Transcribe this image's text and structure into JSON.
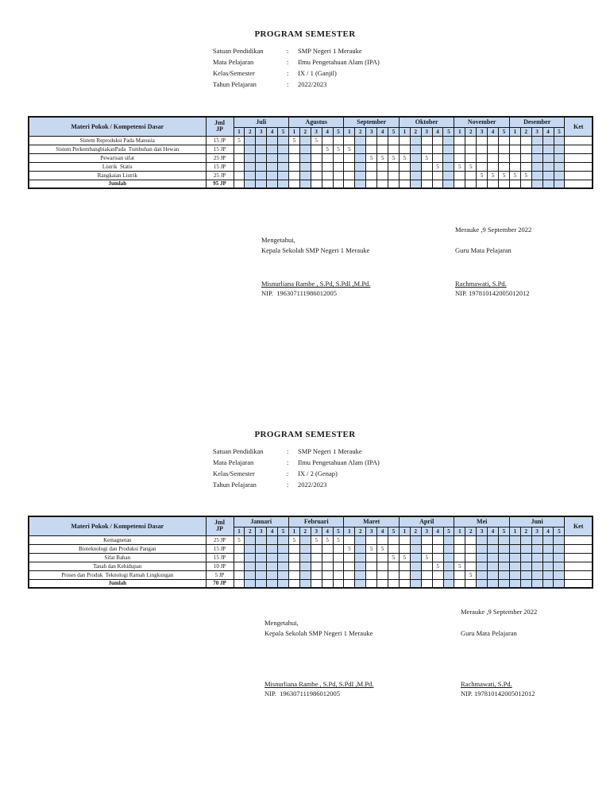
{
  "colors": {
    "header_fill": "#c6d9f1",
    "shaded_week_fill": "#c6d9f1",
    "border": "#151515",
    "page_bg": "#ffffff"
  },
  "sections": [
    {
      "title": "PROGRAM SEMESTER",
      "meta": [
        {
          "label": "Satuan Pendidikan",
          "sep": ":",
          "value": "SMP Negeri 1 Merauke"
        },
        {
          "label": "Mata Pelajaran",
          "sep": ":",
          "value": "Ilmu Pengetahuan Alam (IPA)"
        },
        {
          "label": "Kelas/Semester",
          "sep": ":",
          "value": "IX / 1 (Ganjil)"
        },
        {
          "label": "Tahun Pelajaran",
          "sep": ":",
          "value": "2022/2023"
        }
      ],
      "table": {
        "materi_header": "Materi Pokok / Kompetensi Dasar",
        "jml_header_line1": "Jml",
        "jml_header_line2": "JP",
        "ket_header": "Ket",
        "months": [
          "Juli",
          "Agustus",
          "September",
          "Oktober",
          "November",
          "Desember"
        ],
        "week_numbers": [
          "1",
          "2",
          "3",
          "4",
          "5"
        ],
        "shaded_columns": [
          1,
          2,
          3,
          4,
          6,
          11,
          16,
          19,
          27,
          28,
          29
        ],
        "rows": [
          {
            "materi": "Sistem Reproduksi Pada Manusia",
            "jml": "15 JP",
            "cells": {
              "0": "5",
              "5": "5",
              "7": "5"
            }
          },
          {
            "materi": "Sistem PerkembangbiakanPada  Tumbuhan dan Hewan",
            "jml": "15 JP",
            "cells": {
              "8": "5",
              "9": "5",
              "10": "5"
            }
          },
          {
            "materi": "Pewarisan sifat",
            "jml": "25 JP",
            "cells": {
              "12": "5",
              "13": "5",
              "14": "5",
              "15": "5",
              "17": "5"
            }
          },
          {
            "materi": "Listrik  Statis",
            "jml": "15 JP",
            "cells": {
              "18": "5",
              "20": "5",
              "21": "5"
            }
          },
          {
            "materi": "Rangkaian Listrik",
            "jml": "25 JP",
            "cells": {
              "22": "5",
              "23": "5",
              "24": "5",
              "25": "5",
              "26": "5"
            }
          }
        ],
        "total": {
          "label": "Jumlah",
          "jml": "95 JP"
        }
      },
      "signature": {
        "place_date": "Merauke ,9 September 2022",
        "left_line1": "Mengetahui,",
        "left_line2": "Kepala Sekolah SMP Negeri 1 Merauke",
        "right_role": "Guru Mata Pelajaran",
        "left_name": "Misnurliana Rambe , S.Pd, S.PdI ,M.Pd.",
        "left_nip": "NIP.  196307111986012005",
        "right_name": "Rachmawati, S.Pd.",
        "right_nip": "NIP. 197810142005012012"
      }
    },
    {
      "title": "PROGRAM SEMESTER",
      "meta": [
        {
          "label": "Satuan Pendidikan",
          "sep": ":",
          "value": "SMP Negeri 1 Merauke"
        },
        {
          "label": "Mata Pelajaran",
          "sep": ":",
          "value": "Ilmu Pengetahuan Alam (IPA)"
        },
        {
          "label": "Kelas/Semester",
          "sep": ":",
          "value": "IX / 2 (Genap)"
        },
        {
          "label": "Tahun Pelajaran",
          "sep": ":",
          "value": "2022/2023"
        }
      ],
      "table": {
        "materi_header": "Materi Pokok / Kompetensi Dasar",
        "jml_header_line1": "Jml",
        "jml_header_line2": "JP",
        "ket_header": "Ket",
        "months": [
          "Januari",
          "Februari",
          "Maret",
          "April",
          "Mei",
          "Juni"
        ],
        "week_numbers": [
          "1",
          "2",
          "3",
          "4",
          "5"
        ],
        "shaded_columns": [
          1,
          2,
          3,
          4,
          6,
          11,
          16,
          19,
          22,
          23,
          24,
          25,
          26,
          27,
          28,
          29
        ],
        "rows": [
          {
            "materi": "Kemagnetan",
            "jml": "25 JP",
            "cells": {
              "0": "5",
              "5": "5",
              "7": "5",
              "8": "5",
              "9": "5"
            }
          },
          {
            "materi": "Bioteknologi dan Produksi Pangan",
            "jml": "15 JP",
            "cells": {
              "10": "5",
              "12": "5",
              "13": "5"
            }
          },
          {
            "materi": "Sifat Bahan",
            "jml": "15 JP",
            "cells": {
              "14": "5",
              "15": "5",
              "17": "5"
            }
          },
          {
            "materi": "Tanah dan Kehidupan",
            "jml": "10 JP",
            "cells": {
              "18": "5",
              "20": "5"
            }
          },
          {
            "materi": "Proses dan Produk  Teknologi Ramah Lingkungan",
            "jml": "5 JP",
            "cells": {
              "21": "5"
            }
          }
        ],
        "total": {
          "label": "Jumlah",
          "jml": "70 JP"
        }
      },
      "signature": {
        "place_date": "Merauke ,9 September 2022",
        "left_line1": "Mengetahui,",
        "left_line2": "Kepala Sekolah SMP Negeri 1 Merauke",
        "right_role": "Guru Mata Pelajaran",
        "left_name": "Misnurliana Rambe , S.Pd, S.PdI ,M.Pd.",
        "left_nip": "NIP.  196307111986012005",
        "right_name": "Rachmawati, S.Pd.",
        "right_nip": "NIP. 197810142005012012"
      }
    }
  ]
}
